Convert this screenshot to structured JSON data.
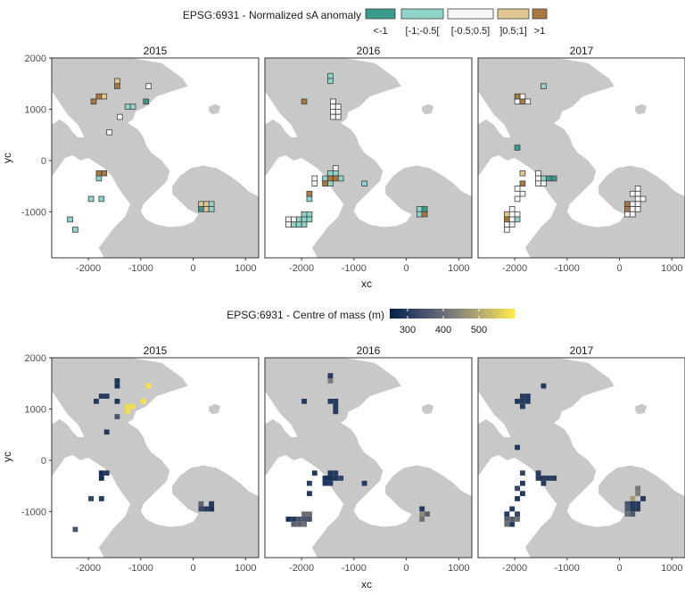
{
  "top": {
    "legend": {
      "title": "EPSG:6931 - Normalized sA anomaly",
      "classes": [
        {
          "label": "<-1",
          "color": "#3a9a8c"
        },
        {
          "label": "[-1;-0.5[",
          "color": "#90d3c8"
        },
        {
          "label": "[-0.5;0.5]",
          "color": "#f6f6f6"
        },
        {
          "label": "]0.5;1]",
          "color": "#e1c78f"
        },
        {
          "label": ">1",
          "color": "#a87940"
        }
      ]
    },
    "xlabel": "xc",
    "ylabel": "yc"
  },
  "bottom": {
    "legend": {
      "title": "EPSG:6931 - Centre of mass (m)",
      "ticks": [
        "300",
        "400",
        "500"
      ],
      "range": [
        250,
        600
      ],
      "colors": [
        "#00204d",
        "#414d6b",
        "#7c7b78",
        "#bcaf6f",
        "#ffea46"
      ]
    },
    "xlabel": "xc",
    "ylabel": "yc"
  },
  "years": [
    "2015",
    "2016",
    "2017"
  ],
  "axes": {
    "x_ticks": [
      "-2000",
      "-1000",
      "0",
      "1000"
    ],
    "y_ticks": [
      "2000",
      "1000",
      "0",
      "-1000"
    ]
  },
  "colors": {
    "land": "#c8c8c8",
    "ocean": "#ffffff",
    "cell_border": "#404040"
  },
  "chart_data": [
    {
      "type": "heatmap",
      "title": "EPSG:6931 - Normalized sA anomaly",
      "xlabel": "xc",
      "ylabel": "yc",
      "xlim": [
        -2700,
        1250
      ],
      "ylim": [
        -1900,
        2000
      ],
      "panels": [
        {
          "year": "2015",
          "cells": [
            [
              -1900,
              1150,
              4
            ],
            [
              -1800,
              1250,
              4
            ],
            [
              -1700,
              1250,
              3
            ],
            [
              -1450,
              1550,
              3
            ],
            [
              -1450,
              1450,
              4
            ],
            [
              -1250,
              1050,
              1
            ],
            [
              -1150,
              1050,
              1
            ],
            [
              -900,
              1150,
              0
            ],
            [
              -850,
              1450,
              2
            ],
            [
              -1400,
              850,
              2
            ],
            [
              -1600,
              550,
              2
            ],
            [
              -1800,
              -350,
              1
            ],
            [
              -1700,
              -250,
              4
            ],
            [
              -1800,
              -250,
              4
            ],
            [
              -1950,
              -750,
              1
            ],
            [
              -1750,
              -750,
              1
            ],
            [
              -2250,
              -1350,
              1
            ],
            [
              -2350,
              -1150,
              1
            ],
            [
              150,
              -850,
              3
            ],
            [
              250,
              -850,
              3
            ],
            [
              150,
              -950,
              0
            ],
            [
              250,
              -950,
              3
            ],
            [
              350,
              -950,
              1
            ],
            [
              350,
              -850,
              1
            ]
          ]
        },
        {
          "year": "2016",
          "cells": [
            [
              -1450,
              1650,
              1
            ],
            [
              -1450,
              1550,
              1
            ],
            [
              -1400,
              1150,
              4
            ],
            [
              -1400,
              1150,
              2
            ],
            [
              -1400,
              1050,
              2
            ],
            [
              -1300,
              1050,
              2
            ],
            [
              -1400,
              950,
              2
            ],
            [
              -1300,
              950,
              2
            ],
            [
              -1400,
              850,
              2
            ],
            [
              -1300,
              850,
              2
            ],
            [
              -1950,
              1150,
              4
            ],
            [
              -1350,
              -150,
              2
            ],
            [
              -1450,
              -250,
              1
            ],
            [
              -1350,
              -250,
              1
            ],
            [
              -1550,
              -350,
              1
            ],
            [
              -1450,
              -350,
              4
            ],
            [
              -1350,
              -350,
              4
            ],
            [
              -1250,
              -350,
              1
            ],
            [
              -1750,
              -350,
              2
            ],
            [
              -1550,
              -450,
              4
            ],
            [
              -1450,
              -450,
              1
            ],
            [
              -1750,
              -450,
              2
            ],
            [
              -1850,
              -650,
              4
            ],
            [
              -1850,
              -750,
              1
            ],
            [
              -800,
              -450,
              1
            ],
            [
              -1950,
              -1050,
              1
            ],
            [
              -1850,
              -1050,
              1
            ],
            [
              -2050,
              -1150,
              1
            ],
            [
              -1950,
              -1150,
              1
            ],
            [
              -1850,
              -1150,
              1
            ],
            [
              -2150,
              -1150,
              2
            ],
            [
              -2250,
              -1150,
              2
            ],
            [
              -2150,
              -1250,
              1
            ],
            [
              -2050,
              -1250,
              1
            ],
            [
              -1950,
              -1250,
              1
            ],
            [
              -2250,
              -1250,
              2
            ],
            [
              250,
              -950,
              1
            ],
            [
              350,
              -950,
              0
            ],
            [
              250,
              -1050,
              1
            ],
            [
              350,
              -1050,
              4
            ]
          ]
        },
        {
          "year": "2017",
          "cells": [
            [
              -1950,
              1150,
              2
            ],
            [
              -1850,
              1150,
              4
            ],
            [
              -1750,
              1150,
              2
            ],
            [
              -1850,
              1250,
              2
            ],
            [
              -1950,
              1250,
              4
            ],
            [
              -1450,
              1450,
              1
            ],
            [
              -1950,
              250,
              0
            ],
            [
              -1550,
              -250,
              2
            ],
            [
              -1550,
              -350,
              2
            ],
            [
              -1450,
              -350,
              1
            ],
            [
              -1350,
              -350,
              0
            ],
            [
              -1250,
              -350,
              0
            ],
            [
              -1450,
              -450,
              2
            ],
            [
              -1550,
              -450,
              2
            ],
            [
              -1850,
              -250,
              3
            ],
            [
              -1850,
              -450,
              4
            ],
            [
              -1950,
              -550,
              2
            ],
            [
              -1850,
              -650,
              2
            ],
            [
              -1950,
              -750,
              2
            ],
            [
              -2050,
              -950,
              2
            ],
            [
              -2150,
              -1050,
              3
            ],
            [
              -1950,
              -1050,
              2
            ],
            [
              -2150,
              -1150,
              4
            ],
            [
              -2050,
              -1150,
              2
            ],
            [
              -1950,
              -1150,
              1
            ],
            [
              -2150,
              -1250,
              2
            ],
            [
              -2050,
              -1250,
              2
            ],
            [
              -2150,
              -1350,
              2
            ],
            [
              350,
              -550,
              2
            ],
            [
              250,
              -650,
              2
            ],
            [
              350,
              -650,
              2
            ],
            [
              450,
              -750,
              2
            ],
            [
              350,
              -750,
              2
            ],
            [
              150,
              -850,
              4
            ],
            [
              250,
              -850,
              2
            ],
            [
              350,
              -850,
              2
            ],
            [
              150,
              -950,
              4
            ],
            [
              250,
              -950,
              2
            ],
            [
              350,
              -950,
              2
            ],
            [
              150,
              -1050,
              2
            ],
            [
              250,
              -1050,
              2
            ]
          ]
        }
      ]
    },
    {
      "type": "heatmap",
      "title": "EPSG:6931 - Centre of mass (m)",
      "xlabel": "xc",
      "ylabel": "yc",
      "xlim": [
        -2700,
        1250
      ],
      "ylim": [
        -1900,
        2000
      ],
      "range": [
        250,
        600
      ],
      "panels": [
        {
          "year": "2015",
          "cells": [
            [
              -1450,
              1550,
              290
            ],
            [
              -1450,
              1450,
              290
            ],
            [
              -1750,
              1250,
              300
            ],
            [
              -1650,
              1250,
              300
            ],
            [
              -1850,
              1150,
              300
            ],
            [
              -1450,
              1150,
              290
            ],
            [
              -850,
              1450,
              590
            ],
            [
              -950,
              1150,
              590
            ],
            [
              -1250,
              1050,
              580
            ],
            [
              -1150,
              1050,
              580
            ],
            [
              -1250,
              950,
              580
            ],
            [
              -1450,
              850,
              350
            ],
            [
              -1650,
              550,
              300
            ],
            [
              -1750,
              -250,
              280
            ],
            [
              -1650,
              -250,
              300
            ],
            [
              -1750,
              -350,
              280
            ],
            [
              -1950,
              -750,
              320
            ],
            [
              -1750,
              -750,
              300
            ],
            [
              -2250,
              -1350,
              350
            ],
            [
              150,
              -850,
              380
            ],
            [
              150,
              -950,
              330
            ],
            [
              250,
              -950,
              300
            ],
            [
              350,
              -950,
              280
            ],
            [
              350,
              -850,
              300
            ]
          ]
        },
        {
          "year": "2016",
          "cells": [
            [
              -1450,
              1650,
              300
            ],
            [
              -1450,
              1550,
              420
            ],
            [
              -1450,
              1150,
              300
            ],
            [
              -1350,
              1150,
              300
            ],
            [
              -1350,
              1050,
              300
            ],
            [
              -1350,
              950,
              300
            ],
            [
              -1950,
              1150,
              300
            ],
            [
              -1450,
              -250,
              290
            ],
            [
              -1350,
              -250,
              300
            ],
            [
              -1550,
              -350,
              280
            ],
            [
              -1450,
              -350,
              280
            ],
            [
              -1350,
              -350,
              290
            ],
            [
              -1250,
              -350,
              320
            ],
            [
              -1750,
              -250,
              300
            ],
            [
              -1550,
              -450,
              290
            ],
            [
              -1450,
              -450,
              300
            ],
            [
              -1850,
              -450,
              310
            ],
            [
              -1850,
              -650,
              300
            ],
            [
              -800,
              -450,
              300
            ],
            [
              -1950,
              -1050,
              400
            ],
            [
              -1850,
              -1050,
              400
            ],
            [
              -2050,
              -1150,
              350
            ],
            [
              -1950,
              -1150,
              350
            ],
            [
              -1850,
              -1150,
              350
            ],
            [
              -2150,
              -1150,
              300
            ],
            [
              -2250,
              -1150,
              280
            ],
            [
              -2150,
              -1250,
              380
            ],
            [
              -2050,
              -1250,
              380
            ],
            [
              -1950,
              -1250,
              400
            ],
            [
              300,
              -950,
              300
            ],
            [
              300,
              -1050,
              450
            ],
            [
              400,
              -1050,
              380
            ],
            [
              300,
              -1150,
              400
            ]
          ]
        },
        {
          "year": "2017",
          "cells": [
            [
              -1850,
              1250,
              300
            ],
            [
              -1750,
              1250,
              300
            ],
            [
              -1850,
              1150,
              300
            ],
            [
              -1950,
              1150,
              300
            ],
            [
              -1750,
              1150,
              300
            ],
            [
              -1850,
              1050,
              300
            ],
            [
              -1450,
              1450,
              300
            ],
            [
              -1950,
              250,
              300
            ],
            [
              -1550,
              -250,
              300
            ],
            [
              -1550,
              -350,
              300
            ],
            [
              -1450,
              -350,
              300
            ],
            [
              -1350,
              -350,
              300
            ],
            [
              -1250,
              -350,
              300
            ],
            [
              -1450,
              -450,
              300
            ],
            [
              -1850,
              -250,
              320
            ],
            [
              -1850,
              -450,
              300
            ],
            [
              -1950,
              -550,
              320
            ],
            [
              -1850,
              -650,
              300
            ],
            [
              -1950,
              -750,
              300
            ],
            [
              -2050,
              -950,
              300
            ],
            [
              -2150,
              -1050,
              300
            ],
            [
              -1950,
              -1050,
              320
            ],
            [
              -2150,
              -1150,
              370
            ],
            [
              -2050,
              -1150,
              370
            ],
            [
              -1950,
              -1150,
              400
            ],
            [
              -2150,
              -1250,
              400
            ],
            [
              -2050,
              -1250,
              300
            ],
            [
              350,
              -550,
              420
            ],
            [
              350,
              -650,
              430
            ],
            [
              250,
              -750,
              480
            ],
            [
              450,
              -750,
              300
            ],
            [
              150,
              -850,
              350
            ],
            [
              250,
              -850,
              300
            ],
            [
              350,
              -850,
              300
            ],
            [
              150,
              -950,
              360
            ],
            [
              250,
              -950,
              300
            ],
            [
              350,
              -950,
              300
            ],
            [
              150,
              -1050,
              400
            ],
            [
              250,
              -1050,
              360
            ]
          ]
        }
      ]
    }
  ]
}
